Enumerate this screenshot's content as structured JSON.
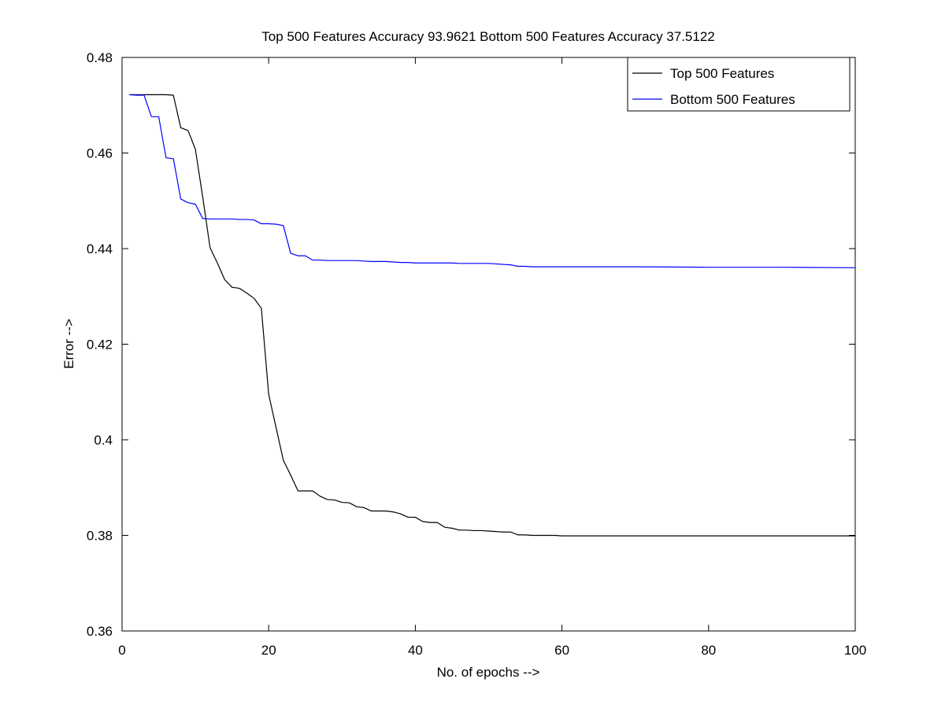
{
  "chart_data": {
    "type": "line",
    "title": "Top 500 Features Accuracy 93.9621 Bottom 500 Features Accuracy 37.5122",
    "xlabel": "No. of epochs -->",
    "ylabel": "Error -->",
    "xlim": [
      0,
      100
    ],
    "ylim": [
      0.36,
      0.48
    ],
    "xticks": [
      0,
      20,
      40,
      60,
      80,
      100
    ],
    "yticks": [
      0.36,
      0.38,
      0.4,
      0.42,
      0.44,
      0.46,
      0.48
    ],
    "xtick_labels": [
      "0",
      "20",
      "40",
      "60",
      "80",
      "100"
    ],
    "ytick_labels": [
      "0.36",
      "0.38",
      "0.4",
      "0.42",
      "0.44",
      "0.46",
      "0.48"
    ],
    "grid": false,
    "legend_position": "top-right",
    "series": [
      {
        "name": "Top 500 Features",
        "color": "#000000",
        "x": [
          1,
          2,
          3,
          4,
          5,
          6,
          7,
          8,
          9,
          10,
          11,
          12,
          13,
          14,
          15,
          16,
          17,
          18,
          19,
          20,
          21,
          22,
          23,
          24,
          25,
          26,
          27,
          28,
          29,
          30,
          31,
          32,
          33,
          34,
          35,
          36,
          37,
          38,
          39,
          40,
          41,
          42,
          43,
          44,
          45,
          46,
          47,
          48,
          49,
          50,
          51,
          52,
          53,
          54,
          55,
          56,
          57,
          58,
          59,
          60,
          70,
          80,
          90,
          100
        ],
        "y": [
          0.4722,
          0.4722,
          0.4722,
          0.4722,
          0.4722,
          0.4722,
          0.4721,
          0.4653,
          0.4647,
          0.4608,
          0.4508,
          0.4402,
          0.437,
          0.4335,
          0.4319,
          0.4317,
          0.4307,
          0.4296,
          0.4275,
          0.4095,
          0.4026,
          0.3957,
          0.3926,
          0.3893,
          0.3893,
          0.3893,
          0.3882,
          0.3875,
          0.3874,
          0.3869,
          0.3868,
          0.386,
          0.3858,
          0.3851,
          0.3851,
          0.3851,
          0.3849,
          0.3845,
          0.3838,
          0.3838,
          0.3829,
          0.3827,
          0.3827,
          0.3817,
          0.3815,
          0.3811,
          0.3811,
          0.381,
          0.381,
          0.3809,
          0.3808,
          0.3807,
          0.3807,
          0.3801,
          0.3801,
          0.38,
          0.38,
          0.38,
          0.38,
          0.3799,
          0.3799,
          0.3799,
          0.3799,
          0.3799
        ]
      },
      {
        "name": "Bottom 500 Features",
        "color": "#0000ff",
        "x": [
          1,
          2,
          3,
          4,
          5,
          6,
          7,
          8,
          9,
          10,
          11,
          12,
          13,
          14,
          15,
          16,
          17,
          18,
          19,
          20,
          21,
          22,
          23,
          24,
          25,
          26,
          27,
          28,
          29,
          30,
          31,
          32,
          33,
          34,
          35,
          36,
          37,
          38,
          39,
          40,
          41,
          42,
          43,
          44,
          45,
          46,
          47,
          48,
          49,
          50,
          51,
          52,
          53,
          54,
          55,
          56,
          57,
          58,
          59,
          60,
          70,
          80,
          90,
          100
        ],
        "y": [
          0.4722,
          0.4721,
          0.4721,
          0.4676,
          0.4676,
          0.459,
          0.4588,
          0.4504,
          0.4496,
          0.4493,
          0.4463,
          0.4462,
          0.4462,
          0.4462,
          0.4462,
          0.4461,
          0.4461,
          0.446,
          0.4452,
          0.4452,
          0.4451,
          0.4448,
          0.439,
          0.4385,
          0.4385,
          0.4376,
          0.4376,
          0.4375,
          0.4375,
          0.4375,
          0.4375,
          0.4375,
          0.4374,
          0.4373,
          0.4373,
          0.4373,
          0.4372,
          0.4371,
          0.4371,
          0.437,
          0.437,
          0.437,
          0.437,
          0.437,
          0.437,
          0.4369,
          0.4369,
          0.4369,
          0.4369,
          0.4369,
          0.4368,
          0.4367,
          0.4366,
          0.4363,
          0.4363,
          0.4362,
          0.4362,
          0.4362,
          0.4362,
          0.4362,
          0.4362,
          0.4361,
          0.4361,
          0.436
        ]
      }
    ]
  }
}
